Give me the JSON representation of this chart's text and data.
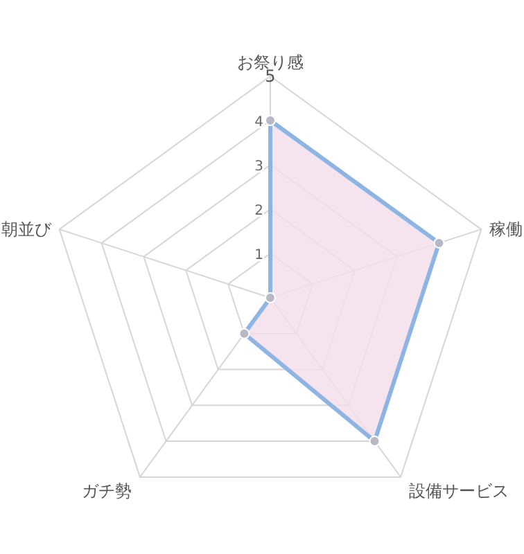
{
  "chart_data": {
    "type": "radar",
    "categories": [
      "お祭り感",
      "稼働",
      "設備サービス",
      "ガチ勢",
      "朝並び"
    ],
    "series": [
      {
        "color": "#8db4e2",
        "values": [
          4,
          4,
          4,
          1,
          0
        ]
      }
    ],
    "ylim": [
      0,
      5
    ],
    "yticks": [
      1,
      2,
      3,
      4,
      5
    ],
    "marker": "circle",
    "grid": true
  }
}
